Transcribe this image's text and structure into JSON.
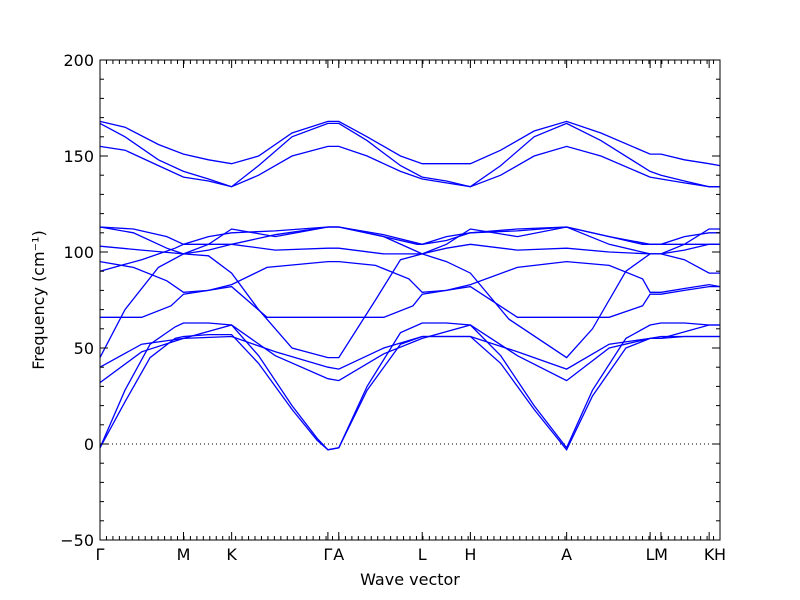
{
  "chart_data": {
    "type": "line",
    "title": "",
    "xlabel": "Wave vector",
    "ylabel": "Frequency (cm⁻¹)",
    "ylim": [
      -50,
      200
    ],
    "y_ticks": [
      -50,
      0,
      50,
      100,
      150,
      200
    ],
    "y_tick_labels": [
      "−50",
      "0",
      "50",
      "100",
      "150",
      "200"
    ],
    "x_ticks": [
      {
        "label": "Γ",
        "pos": 0.0
      },
      {
        "label": "M",
        "pos": 1.0
      },
      {
        "label": "K",
        "pos": 1.577
      },
      {
        "label": "Γ",
        "pos": 2.73
      },
      {
        "label": "A",
        "pos": 2.86
      },
      {
        "label": "L",
        "pos": 3.86
      },
      {
        "label": "H",
        "pos": 4.437
      },
      {
        "label": "A",
        "pos": 5.59
      },
      {
        "label": "L",
        "pos": 6.59
      },
      {
        "label": "M",
        "pos": 6.72
      },
      {
        "label": "K",
        "pos": 7.297
      },
      {
        "label": "H",
        "pos": 7.427
      }
    ],
    "xlim": [
      0.0,
      7.427
    ],
    "zero_reference_line": true,
    "line_color": "#0000ff",
    "segments": [
      {
        "from": "Γ",
        "to": "M",
        "x": [
          0.0,
          0.25,
          0.5,
          0.75,
          1.0
        ]
      },
      {
        "from": "M",
        "to": "K",
        "x": [
          1.0,
          1.29,
          1.577
        ]
      },
      {
        "from": "K",
        "to": "Γ",
        "x": [
          1.577,
          2.15,
          2.73
        ]
      },
      {
        "from": "A",
        "to": "L",
        "x": [
          2.86,
          3.36,
          3.86
        ]
      },
      {
        "from": "L",
        "to": "H",
        "x": [
          3.86,
          4.15,
          4.437
        ]
      },
      {
        "from": "H",
        "to": "A",
        "x": [
          4.437,
          5.01,
          5.59
        ]
      },
      {
        "from": "L",
        "to": "M",
        "x": [
          6.59,
          6.72
        ]
      },
      {
        "from": "K",
        "to": "H",
        "x": [
          7.297,
          7.427
        ]
      }
    ],
    "series": [
      {
        "x": [
          0.0,
          0.3,
          0.6,
          0.9,
          1.0,
          1.3,
          1.577,
          1.9,
          2.3,
          2.6,
          2.73,
          2.86,
          3.2,
          3.6,
          3.86,
          4.15,
          4.437,
          4.8,
          5.2,
          5.59,
          5.9,
          6.3,
          6.59,
          6.72,
          7.0,
          7.297,
          7.427
        ],
        "y": [
          -2,
          22,
          45,
          55,
          56,
          57,
          57,
          42,
          18,
          2,
          -3,
          -2,
          28,
          52,
          56,
          56,
          56,
          42,
          18,
          -3,
          25,
          50,
          55,
          55,
          56,
          56,
          56
        ]
      },
      {
        "x": [
          0.0,
          0.3,
          0.6,
          0.9,
          1.0,
          1.3,
          1.577,
          1.9,
          2.3,
          2.6,
          2.73,
          2.86,
          3.2,
          3.6,
          3.86,
          4.15,
          4.437,
          4.8,
          5.2,
          5.59,
          5.9,
          6.3,
          6.59,
          6.72,
          7.0,
          7.297,
          7.427
        ],
        "y": [
          -2,
          28,
          52,
          61,
          63,
          63,
          62,
          46,
          20,
          3,
          -3,
          -2,
          30,
          58,
          63,
          63,
          62,
          46,
          20,
          -2,
          28,
          55,
          62,
          63,
          63,
          62,
          62
        ]
      },
      {
        "x": [
          0.0,
          0.5,
          1.0,
          1.577,
          2.1,
          2.73,
          2.86,
          3.4,
          3.86,
          4.437,
          5.0,
          5.59,
          6.1,
          6.59,
          6.72,
          7.297,
          7.427
        ],
        "y": [
          32,
          48,
          55,
          62,
          46,
          34,
          33,
          47,
          55,
          62,
          46,
          33,
          50,
          55,
          55,
          62,
          62
        ]
      },
      {
        "x": [
          0.0,
          0.5,
          1.0,
          1.577,
          2.1,
          2.73,
          2.86,
          3.4,
          3.86,
          4.437,
          5.0,
          5.59,
          6.1,
          6.59,
          6.72,
          7.297,
          7.427
        ],
        "y": [
          40,
          52,
          55,
          56,
          48,
          40,
          39,
          50,
          56,
          56,
          48,
          39,
          52,
          55,
          56,
          56,
          56
        ]
      },
      {
        "x": [
          0.0,
          0.3,
          0.7,
          1.0,
          1.3,
          1.577,
          1.9,
          2.3,
          2.73,
          2.86,
          3.3,
          3.6,
          3.86,
          4.15,
          4.437,
          4.9,
          5.59,
          5.9,
          6.3,
          6.59,
          6.72,
          7.0,
          7.297,
          7.427
        ],
        "y": [
          45,
          70,
          92,
          99,
          98,
          89,
          70,
          50,
          45,
          45,
          75,
          96,
          99,
          95,
          89,
          65,
          45,
          60,
          90,
          99,
          99,
          96,
          89,
          89
        ]
      },
      {
        "x": [
          0.0,
          0.5,
          0.85,
          1.0,
          1.3,
          1.577,
          2.0,
          2.73,
          2.86,
          3.4,
          3.75,
          3.86,
          4.15,
          4.437,
          5.0,
          5.59,
          6.1,
          6.5,
          6.59,
          6.72,
          7.0,
          7.297,
          7.427
        ],
        "y": [
          66,
          66,
          72,
          78,
          80,
          82,
          66,
          66,
          66,
          66,
          72,
          78,
          80,
          82,
          66,
          66,
          66,
          72,
          78,
          78,
          80,
          82,
          82
        ]
      },
      {
        "x": [
          0.0,
          0.4,
          0.8,
          1.0,
          1.3,
          1.577,
          2.0,
          2.73,
          2.86,
          3.3,
          3.7,
          3.86,
          4.15,
          4.437,
          5.0,
          5.59,
          6.1,
          6.5,
          6.59,
          6.72,
          7.0,
          7.297,
          7.427
        ],
        "y": [
          95,
          92,
          85,
          79,
          80,
          83,
          92,
          95,
          95,
          93,
          86,
          79,
          80,
          83,
          92,
          95,
          93,
          86,
          79,
          79,
          81,
          83,
          82
        ]
      },
      {
        "x": [
          0.0,
          0.5,
          0.9,
          1.0,
          1.3,
          1.577,
          2.1,
          2.73,
          2.86,
          3.4,
          3.8,
          3.86,
          4.15,
          4.437,
          5.0,
          5.59,
          6.1,
          6.5,
          6.59,
          6.72,
          7.0,
          7.297,
          7.427
        ],
        "y": [
          90,
          96,
          102,
          104,
          104,
          104,
          109,
          113,
          113,
          108,
          104,
          104,
          106,
          110,
          112,
          113,
          108,
          104,
          104,
          104,
          104,
          104,
          104
        ]
      },
      {
        "x": [
          0.0,
          0.5,
          1.0,
          1.3,
          1.577,
          2.1,
          2.73,
          2.86,
          3.4,
          3.86,
          4.15,
          4.437,
          5.0,
          5.59,
          6.1,
          6.59,
          6.72,
          7.0,
          7.297,
          7.427
        ],
        "y": [
          103,
          101,
          99,
          101,
          104,
          101,
          102,
          102,
          99,
          99,
          102,
          104,
          101,
          102,
          100,
          99,
          99,
          101,
          104,
          104
        ]
      },
      {
        "x": [
          0.0,
          0.4,
          0.8,
          1.0,
          1.3,
          1.577,
          2.1,
          2.73,
          2.86,
          3.4,
          3.86,
          4.15,
          4.437,
          5.0,
          5.59,
          6.1,
          6.59,
          6.72,
          7.0,
          7.297,
          7.427
        ],
        "y": [
          113,
          112,
          108,
          104,
          108,
          110,
          111,
          113,
          113,
          109,
          104,
          108,
          110,
          111,
          113,
          108,
          104,
          104,
          108,
          110,
          110
        ]
      },
      {
        "x": [
          0.0,
          0.4,
          0.8,
          1.0,
          1.3,
          1.577,
          2.1,
          2.73,
          2.86,
          3.4,
          3.86,
          4.15,
          4.437,
          5.0,
          5.59,
          6.1,
          6.59,
          6.72,
          7.0,
          7.297,
          7.427
        ],
        "y": [
          113,
          110,
          102,
          99,
          104,
          112,
          108,
          113,
          113,
          108,
          99,
          104,
          112,
          108,
          113,
          104,
          99,
          99,
          104,
          112,
          112
        ]
      },
      {
        "x": [
          0.0,
          0.3,
          0.7,
          1.0,
          1.3,
          1.577,
          1.9,
          2.3,
          2.73,
          2.86,
          3.2,
          3.6,
          3.86,
          4.15,
          4.437,
          4.8,
          5.2,
          5.59,
          6.0,
          6.59,
          6.72,
          7.0,
          7.297,
          7.427
        ],
        "y": [
          168,
          165,
          156,
          151,
          148,
          146,
          150,
          162,
          168,
          168,
          160,
          150,
          146,
          146,
          146,
          153,
          163,
          168,
          162,
          151,
          151,
          148,
          146,
          145
        ]
      },
      {
        "x": [
          0.0,
          0.3,
          0.7,
          1.0,
          1.3,
          1.577,
          1.9,
          2.3,
          2.73,
          2.86,
          3.2,
          3.6,
          3.86,
          4.15,
          4.437,
          4.8,
          5.2,
          5.59,
          6.0,
          6.59,
          6.72,
          7.0,
          7.297,
          7.427
        ],
        "y": [
          167,
          160,
          148,
          142,
          138,
          134,
          145,
          160,
          167,
          167,
          158,
          145,
          139,
          137,
          134,
          145,
          160,
          167,
          158,
          142,
          140,
          137,
          134,
          134
        ]
      },
      {
        "x": [
          0.0,
          0.3,
          0.7,
          1.0,
          1.3,
          1.577,
          1.9,
          2.3,
          2.73,
          2.86,
          3.2,
          3.6,
          3.86,
          4.15,
          4.437,
          4.8,
          5.2,
          5.59,
          6.0,
          6.59,
          6.72,
          7.0,
          7.297,
          7.427
        ],
        "y": [
          155,
          153,
          145,
          139,
          137,
          134,
          140,
          150,
          155,
          155,
          150,
          142,
          138,
          136,
          134,
          140,
          150,
          155,
          150,
          139,
          138,
          136,
          134,
          134
        ]
      }
    ]
  }
}
